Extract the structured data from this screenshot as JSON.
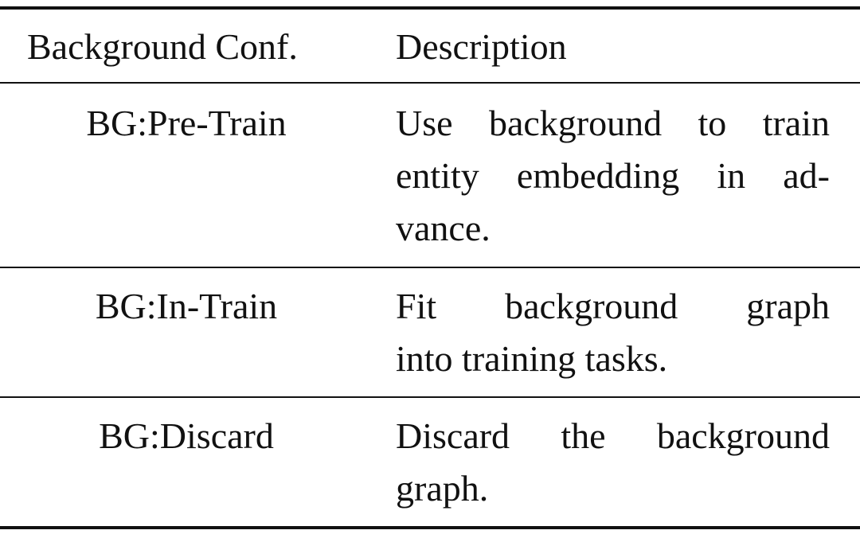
{
  "table": {
    "headers": [
      "Background Conf.",
      "Description"
    ],
    "rows": [
      {
        "config": "BG:Pre-Train",
        "description_lines": [
          "Use background to train",
          "entity embedding in ad-",
          "vance."
        ]
      },
      {
        "config": "BG:In-Train",
        "description_lines": [
          "Fit background graph",
          "into training tasks."
        ]
      },
      {
        "config": "BG:Discard",
        "description_lines": [
          "Discard the background",
          "graph."
        ]
      }
    ]
  }
}
